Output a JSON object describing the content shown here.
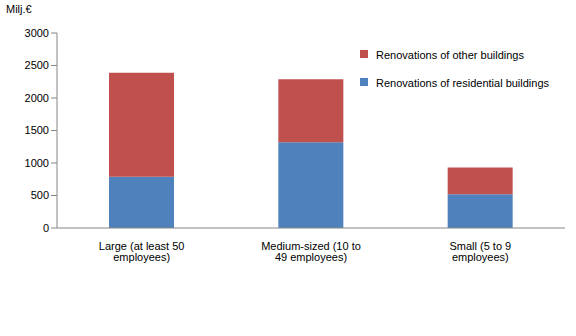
{
  "chart_data": {
    "type": "bar",
    "stacked": true,
    "y_label": "Milj.€",
    "categories": [
      "Large (at least 50 employees)",
      "Medium-sized (10 to 49 employees)",
      "Small (5 to 9 employees)"
    ],
    "series": [
      {
        "name": "Renovations of residential buildings",
        "color": "#4f81bd",
        "values": [
          790,
          1320,
          520
        ]
      },
      {
        "name": "Renovations of other buildings",
        "color": "#c0504d",
        "values": [
          1600,
          970,
          410
        ]
      }
    ],
    "ylim": [
      0,
      3000
    ],
    "yticks": [
      0,
      500,
      1000,
      1500,
      2000,
      2500,
      3000
    ],
    "grid": false,
    "legend": "upper right"
  }
}
